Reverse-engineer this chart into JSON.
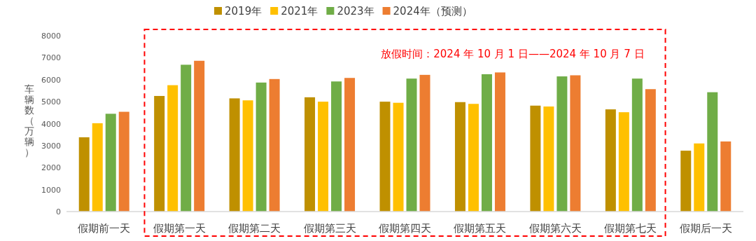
{
  "chart_data": {
    "type": "bar",
    "ylabel": "车辆数（万辆）",
    "categories": [
      "假期前一天",
      "假期第一天",
      "假期第二天",
      "假期第三天",
      "假期第四天",
      "假期第五天",
      "假期第六天",
      "假期第七天",
      "假期后一天"
    ],
    "series": [
      {
        "name": "2019年",
        "color": "#bf9000",
        "values": [
          3380,
          5260,
          5150,
          5200,
          5000,
          4980,
          4820,
          4650,
          2770
        ]
      },
      {
        "name": "2021年",
        "color": "#ffc000",
        "values": [
          4020,
          5750,
          5060,
          5000,
          4950,
          4900,
          4780,
          4520,
          3100
        ]
      },
      {
        "name": "2023年",
        "color": "#70ad47",
        "values": [
          4450,
          6680,
          5870,
          5920,
          6050,
          6250,
          6150,
          6050,
          5430
        ]
      },
      {
        "name": "2024年（预测）",
        "color": "#ed7d31",
        "values": [
          4540,
          6860,
          6030,
          6080,
          6220,
          6330,
          6200,
          5570,
          3190
        ]
      }
    ],
    "ylim": [
      0,
      8000
    ],
    "yticks": [
      0,
      1000,
      2000,
      3000,
      4000,
      5000,
      6000,
      7000,
      8000
    ],
    "grid": false,
    "legend": "top",
    "annotations": [
      "放假时间：2024 年 10 月 1 日——2024 年 10 月 7 日"
    ]
  }
}
